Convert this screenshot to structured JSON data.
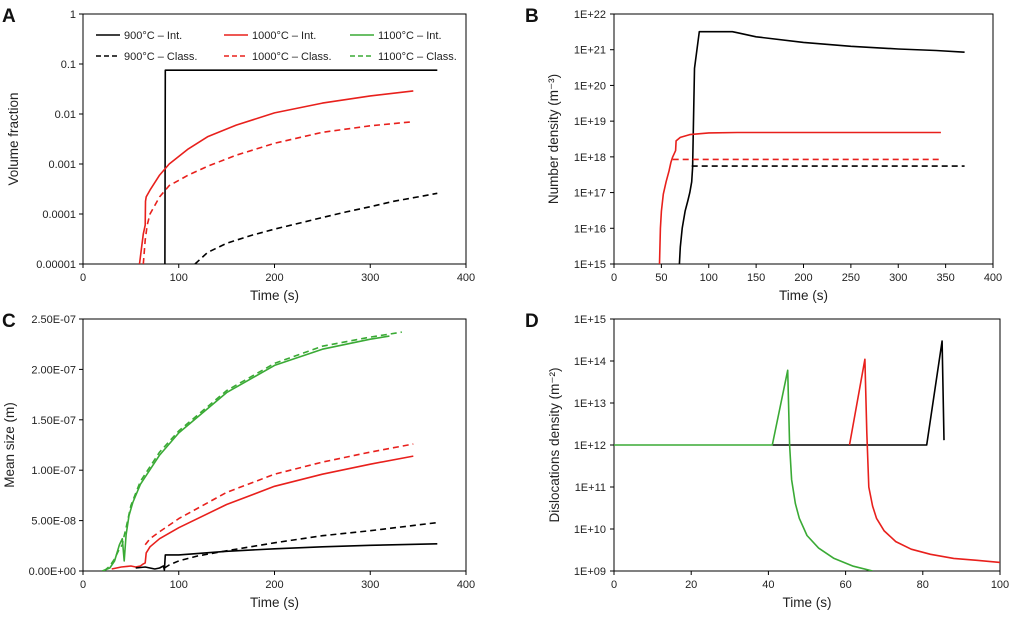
{
  "figure_labels": {
    "A": "A",
    "B": "B",
    "C": "C",
    "D": "D"
  },
  "colors": {
    "900": "#000000",
    "1000": "#e8201c",
    "1100": "#3aaa35"
  },
  "chart_data": [
    {
      "id": "A",
      "type": "line",
      "yscale": "log",
      "xlabel": "Time (s)",
      "ylabel": "Volume fraction",
      "xlim": [
        0,
        400
      ],
      "ylim": [
        1e-05,
        1
      ],
      "xticks": [
        0,
        100,
        200,
        300,
        400
      ],
      "xtick_labels": [
        "0",
        "100",
        "200",
        "300",
        "400"
      ],
      "yticks": [
        1e-05,
        0.0001,
        0.001,
        0.01,
        0.1,
        1
      ],
      "ytick_labels": [
        "0.00001",
        "0.0001",
        "0.001",
        "0.01",
        "0.1",
        "1"
      ],
      "legend": [
        {
          "label": "900°C – Int.",
          "color": "#000000",
          "dash": false
        },
        {
          "label": "1000°C – Int.",
          "color": "#e8201c",
          "dash": false
        },
        {
          "label": "1100°C – Int.",
          "color": "#3aaa35",
          "dash": false
        },
        {
          "label": "900°C – Class.",
          "color": "#000000",
          "dash": true
        },
        {
          "label": "1000°C – Class.",
          "color": "#e8201c",
          "dash": true
        },
        {
          "label": "1100°C – Class.",
          "color": "#3aaa35",
          "dash": true
        }
      ],
      "series": [
        {
          "name": "900°C – Int.",
          "color": "#000000",
          "dash": false,
          "x": [
            85.5,
            86,
            86.5,
            370
          ],
          "y": [
            1e-05,
            0.075,
            0.075,
            0.075
          ]
        },
        {
          "name": "900°C – Class.",
          "color": "#000000",
          "dash": true,
          "x": [
            117,
            130,
            150,
            175,
            200,
            225,
            250,
            275,
            300,
            325,
            350,
            370
          ],
          "y": [
            1e-05,
            1.7e-05,
            2.6e-05,
            3.7e-05,
            5e-05,
            6.5e-05,
            8.5e-05,
            0.00011,
            0.00014,
            0.00018,
            0.00022,
            0.00026
          ]
        },
        {
          "name": "1000°C – Int.",
          "color": "#e8201c",
          "dash": false,
          "x": [
            59,
            61,
            63,
            65,
            65.3,
            66,
            70,
            80,
            90,
            110,
            130,
            160,
            200,
            250,
            300,
            345
          ],
          "y": [
            1e-05,
            2e-05,
            4e-05,
            6e-05,
            0.00018,
            0.00022,
            0.0003,
            0.0006,
            0.001,
            0.002,
            0.0035,
            0.006,
            0.0105,
            0.0165,
            0.023,
            0.029
          ]
        },
        {
          "name": "1000°C – Class.",
          "color": "#e8201c",
          "dash": true,
          "x": [
            63,
            65,
            67,
            70,
            80,
            90,
            110,
            130,
            160,
            200,
            250,
            300,
            345
          ],
          "y": [
            1e-05,
            3e-05,
            6e-05,
            0.0001,
            0.00022,
            0.00037,
            0.0006,
            0.0009,
            0.0015,
            0.0026,
            0.0043,
            0.0058,
            0.007
          ]
        }
      ]
    },
    {
      "id": "B",
      "type": "line",
      "yscale": "log",
      "xlabel": "Time (s)",
      "ylabel": "Number density (m⁻³)",
      "xlim": [
        0,
        400
      ],
      "ylim": [
        1000000000000000.0,
        1e+22
      ],
      "xticks": [
        0,
        50,
        100,
        150,
        200,
        250,
        300,
        350,
        400
      ],
      "xtick_labels": [
        "0",
        "50",
        "100",
        "150",
        "200",
        "250",
        "300",
        "350",
        "400"
      ],
      "yticks": [
        1000000000000000.0,
        1e+16,
        1e+17,
        1e+18,
        1e+19,
        1e+20,
        1e+21,
        1e+22
      ],
      "ytick_labels": [
        "1E+15",
        "1E+16",
        "1E+17",
        "1E+18",
        "1E+19",
        "1E+20",
        "1E+21",
        "1E+22"
      ],
      "series": [
        {
          "name": "900°C – Int.",
          "color": "#000000",
          "dash": false,
          "x": [
            69,
            70,
            72,
            75,
            78,
            80,
            82,
            83,
            85,
            90,
            100,
            110,
            125,
            130,
            150,
            200,
            250,
            300,
            340,
            370
          ],
          "y": [
            1000000000000000.0,
            3000000000000000.0,
            1e+16,
            3e+16,
            6e+16,
            1e+17,
            2e+17,
            5e+17,
            3e+20,
            3.2e+21,
            3.2e+21,
            3.2e+21,
            3.2e+21,
            3e+21,
            2.3e+21,
            1.6e+21,
            1.25e+21,
            1.05e+21,
            9.5e+20,
            8.5e+20
          ]
        },
        {
          "name": "900°C – Class.",
          "color": "#000000",
          "dash": true,
          "x": [
            82,
            370
          ],
          "y": [
            5.5e+17,
            5.5e+17
          ]
        },
        {
          "name": "1000°C – Int.",
          "color": "#e8201c",
          "dash": false,
          "x": [
            48,
            49,
            50,
            52,
            55,
            58,
            60,
            62,
            64,
            65,
            65.5,
            70,
            80,
            100,
            130,
            200,
            345
          ],
          "y": [
            1000000000000000.0,
            1e+16,
            3e+16,
            9e+16,
            2e+17,
            4e+17,
            7e+17,
            1e+18,
            1.3e+18,
            1.5e+18,
            2.8e+18,
            3.5e+18,
            4.2e+18,
            4.7e+18,
            4.8e+18,
            4.8e+18,
            4.8e+18
          ]
        },
        {
          "name": "1000°C – Class.",
          "color": "#e8201c",
          "dash": true,
          "x": [
            62,
            345
          ],
          "y": [
            8.5e+17,
            8.5e+17
          ]
        }
      ]
    },
    {
      "id": "C",
      "type": "line",
      "yscale": "linear",
      "xlabel": "Time (s)",
      "ylabel": "Mean size (m)",
      "xlim": [
        0,
        400
      ],
      "ylim": [
        0,
        2.5e-07
      ],
      "xticks": [
        0,
        100,
        200,
        300,
        400
      ],
      "xtick_labels": [
        "0",
        "100",
        "200",
        "300",
        "400"
      ],
      "yticks": [
        0,
        5e-08,
        1e-07,
        1.5e-07,
        2e-07,
        2.5e-07
      ],
      "ytick_labels": [
        "0.00E+00",
        "5.00E-08",
        "1.00E-07",
        "1.50E-07",
        "2.00E-07",
        "2.50E-07"
      ],
      "series": [
        {
          "name": "1100°C – Class.",
          "color": "#3aaa35",
          "dash": true,
          "x": [
            22,
            28,
            33,
            38,
            41,
            43,
            45,
            50,
            60,
            80,
            100,
            150,
            200,
            250,
            300,
            333
          ],
          "y": [
            0,
            5e-09,
            1.2e-08,
            2.2e-08,
            2.6e-08,
            3.5e-08,
            4.3e-08,
            6.5e-08,
            8.9e-08,
            1.18e-07,
            1.39e-07,
            1.79e-07,
            2.06e-07,
            2.23e-07,
            2.32e-07,
            2.37e-07
          ]
        },
        {
          "name": "1100°C – Int.",
          "color": "#3aaa35",
          "dash": false,
          "x": [
            20,
            28,
            33,
            38,
            41,
            43,
            45,
            48,
            52,
            60,
            80,
            100,
            150,
            200,
            250,
            300,
            320
          ],
          "y": [
            0,
            3e-09,
            1e-08,
            2.6e-08,
            3.2e-08,
            1e-08,
            3.6e-08,
            5.5e-08,
            6.8e-08,
            8.6e-08,
            1.15e-07,
            1.37e-07,
            1.77e-07,
            2.04e-07,
            2.2e-07,
            2.3e-07,
            2.33e-07
          ]
        },
        {
          "name": "1000°C – Class.",
          "color": "#e8201c",
          "dash": true,
          "x": [
            65,
            70,
            80,
            100,
            150,
            200,
            250,
            300,
            345
          ],
          "y": [
            2.6e-08,
            3.2e-08,
            3.9e-08,
            5.2e-08,
            7.8e-08,
            9.6e-08,
            1.08e-07,
            1.18e-07,
            1.26e-07
          ]
        },
        {
          "name": "1000°C – Int.",
          "color": "#e8201c",
          "dash": false,
          "x": [
            30,
            40,
            50,
            55,
            60,
            63,
            65,
            66,
            70,
            80,
            100,
            150,
            200,
            250,
            300,
            345
          ],
          "y": [
            2e-09,
            4e-09,
            5e-09,
            4e-09,
            5e-09,
            7e-09,
            8e-09,
            1.8e-08,
            2.4e-08,
            3.2e-08,
            4.3e-08,
            6.6e-08,
            8.4e-08,
            9.6e-08,
            1.06e-07,
            1.14e-07
          ]
        },
        {
          "name": "900°C – Class.",
          "color": "#000000",
          "dash": true,
          "x": [
            85,
            90,
            100,
            120,
            150,
            200,
            250,
            300,
            370
          ],
          "y": [
            3e-09,
            6e-09,
            1e-08,
            1.5e-08,
            2e-08,
            2.8e-08,
            3.5e-08,
            4e-08,
            4.8e-08
          ]
        },
        {
          "name": "900°C – Int.",
          "color": "#000000",
          "dash": false,
          "x": [
            55,
            65,
            70,
            75,
            80,
            84,
            85,
            86,
            90,
            100,
            150,
            200,
            250,
            300,
            370
          ],
          "y": [
            3e-09,
            4e-09,
            3e-09,
            2e-09,
            3e-09,
            5e-09,
            1e-09,
            1.6e-08,
            1.6e-08,
            1.6e-08,
            1.95e-08,
            2.2e-08,
            2.4e-08,
            2.55e-08,
            2.7e-08
          ]
        }
      ]
    },
    {
      "id": "D",
      "type": "line",
      "yscale": "log",
      "xlabel": "Time (s)",
      "ylabel": "Dislocations density (m⁻²)",
      "xlim": [
        0,
        100
      ],
      "ylim": [
        1000000000.0,
        1000000000000000.0
      ],
      "xticks": [
        0,
        20,
        40,
        60,
        80,
        100
      ],
      "xtick_labels": [
        "0",
        "20",
        "40",
        "60",
        "80",
        "100"
      ],
      "yticks": [
        1000000000.0,
        10000000000.0,
        100000000000.0,
        1000000000000.0,
        10000000000000.0,
        100000000000000.0,
        1000000000000000.0
      ],
      "ytick_labels": [
        "1E+09",
        "1E+10",
        "1E+11",
        "1E+12",
        "1E+13",
        "1E+14",
        "1E+15"
      ],
      "series": [
        {
          "name": "900°C – Int.",
          "color": "#000000",
          "dash": false,
          "x": [
            41,
            81,
            85,
            85.5
          ],
          "y": [
            1000000000000.0,
            1000000000000.0,
            300000000000000.0,
            1300000000000.0
          ]
        },
        {
          "name": "1000°C – Int.",
          "color": "#e8201c",
          "dash": false,
          "x": [
            61,
            65,
            65.5,
            66,
            67,
            68,
            70,
            73,
            77,
            82,
            88,
            94,
            100
          ],
          "y": [
            1000000000000.0,
            110000000000000.0,
            2000000000000.0,
            100000000000.0,
            35000000000.0,
            18000000000.0,
            9000000000.0,
            5000000000.0,
            3300000000.0,
            2500000000.0,
            2000000000.0,
            1800000000.0,
            1600000000.0
          ]
        },
        {
          "name": "1100°C – Int.",
          "color": "#3aaa35",
          "dash": false,
          "x": [
            0,
            41,
            45,
            45.5,
            46,
            47,
            48,
            50,
            53,
            57,
            62,
            67
          ],
          "y": [
            1000000000000.0,
            1000000000000.0,
            60000000000000.0,
            1000000000000.0,
            150000000000.0,
            40000000000.0,
            18000000000.0,
            7000000000.0,
            3500000000.0,
            2000000000.0,
            1300000000.0,
            1000000000.0
          ]
        }
      ]
    }
  ]
}
